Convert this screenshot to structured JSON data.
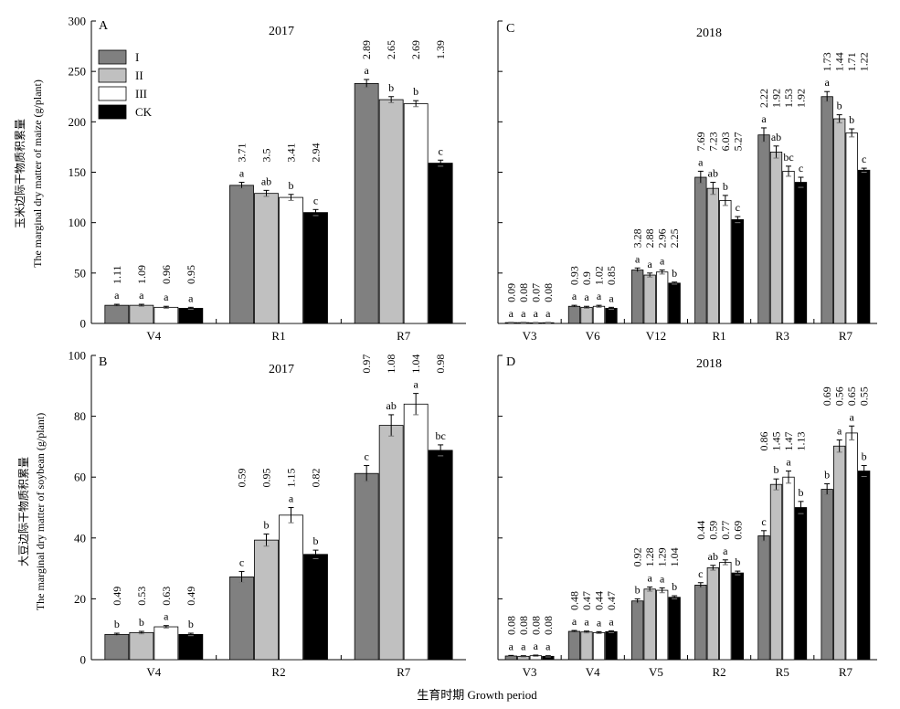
{
  "figure": {
    "xlabel": "生育时期 Growth period",
    "ylabel_top_cn": "玉米边际干物质积累量",
    "ylabel_top_en": "The marginal dry matter of maize (g/plant)",
    "ylabel_bottom_cn": "大豆边际干物质积累量",
    "ylabel_bottom_en": "The marginal dry matter of soybean (g/plant)"
  },
  "legend": {
    "entries": [
      "I",
      "II",
      "III",
      "CK"
    ]
  },
  "colors": {
    "I": "#808080",
    "II": "#c0c0c0",
    "III": "#ffffff",
    "CK": "#000000"
  },
  "chart_data": [
    {
      "panel": "A",
      "type": "bar",
      "title": "2017",
      "ylim": [
        0,
        300
      ],
      "yticks": [
        0,
        50,
        100,
        150,
        200,
        250,
        300
      ],
      "categories": [
        "V4",
        "R1",
        "R7"
      ],
      "series": [
        {
          "name": "I",
          "values": [
            18,
            137,
            238
          ],
          "errors": [
            1,
            3,
            4
          ],
          "letters": [
            "a",
            "a",
            "a"
          ],
          "ratios": [
            "1.11",
            "3.71",
            "2.89"
          ]
        },
        {
          "name": "II",
          "values": [
            18,
            129,
            222
          ],
          "errors": [
            1,
            3,
            3
          ],
          "letters": [
            "a",
            "ab",
            "b"
          ],
          "ratios": [
            "1.09",
            "3.5",
            "2.65"
          ]
        },
        {
          "name": "III",
          "values": [
            16,
            125,
            218
          ],
          "errors": [
            1,
            3,
            3
          ],
          "letters": [
            "a",
            "b",
            "b"
          ],
          "ratios": [
            "0.96",
            "3.41",
            "2.69"
          ]
        },
        {
          "name": "CK",
          "values": [
            15,
            110,
            159
          ],
          "errors": [
            1,
            3,
            3
          ],
          "letters": [
            "a",
            "c",
            "c"
          ],
          "ratios": [
            "0.95",
            "2.94",
            "1.39"
          ]
        }
      ]
    },
    {
      "panel": "C",
      "type": "bar",
      "title": "2018",
      "ylim": [
        0,
        300
      ],
      "categories": [
        "V3",
        "V6",
        "V12",
        "R1",
        "R3",
        "R7"
      ],
      "series": [
        {
          "name": "I",
          "values": [
            0.8,
            17,
            53,
            145,
            187,
            225
          ],
          "errors": [
            0.2,
            1,
            2,
            6,
            7,
            5
          ],
          "letters": [
            "a",
            "a",
            "a",
            "a",
            "a",
            "a"
          ],
          "ratios": [
            "0.09",
            "0.93",
            "3.28",
            "7.69",
            "2.22",
            "1.73"
          ]
        },
        {
          "name": "II",
          "values": [
            0.8,
            16,
            48,
            134,
            170,
            203
          ],
          "errors": [
            0.2,
            1,
            2,
            6,
            6,
            4
          ],
          "letters": [
            "a",
            "a",
            "a",
            "ab",
            "ab",
            "b"
          ],
          "ratios": [
            "0.08",
            "0.9",
            "2.88",
            "7.23",
            "1.92",
            "1.44"
          ]
        },
        {
          "name": "III",
          "values": [
            0.6,
            17,
            51,
            122,
            151,
            189
          ],
          "errors": [
            0.2,
            1,
            2,
            5,
            5,
            4
          ],
          "letters": [
            "a",
            "a",
            "a",
            "b",
            "bc",
            "b"
          ],
          "ratios": [
            "0.07",
            "1.02",
            "2.96",
            "6.03",
            "1.53",
            "1.71"
          ]
        },
        {
          "name": "CK",
          "values": [
            0.7,
            15,
            40,
            103,
            140,
            152
          ],
          "errors": [
            0.2,
            1,
            1,
            3,
            5,
            2
          ],
          "letters": [
            "a",
            "a",
            "b",
            "c",
            "c",
            "c"
          ],
          "ratios": [
            "0.08",
            "0.85",
            "2.25",
            "5.27",
            "1.92",
            "1.22"
          ]
        }
      ]
    },
    {
      "panel": "B",
      "type": "bar",
      "title": "2017",
      "ylim": [
        0,
        100
      ],
      "yticks": [
        0,
        20,
        40,
        60,
        80,
        100
      ],
      "categories": [
        "V4",
        "R2",
        "R7"
      ],
      "series": [
        {
          "name": "I",
          "values": [
            8.3,
            27.2,
            61.2
          ],
          "errors": [
            0.4,
            1.8,
            2.6
          ],
          "letters": [
            "b",
            "c",
            "c"
          ],
          "ratios": [
            "0.49",
            "0.59",
            "0.97"
          ]
        },
        {
          "name": "II",
          "values": [
            8.9,
            39.3,
            77.0
          ],
          "errors": [
            0.4,
            2.0,
            3.5
          ],
          "letters": [
            "b",
            "b",
            "ab"
          ],
          "ratios": [
            "0.53",
            "0.95",
            "1.08"
          ]
        },
        {
          "name": "III",
          "values": [
            10.8,
            47.5,
            84.0
          ],
          "errors": [
            0.4,
            2.5,
            3.5
          ],
          "letters": [
            "a",
            "a",
            "a"
          ],
          "ratios": [
            "0.63",
            "1.15",
            "1.04"
          ]
        },
        {
          "name": "CK",
          "values": [
            8.3,
            34.6,
            68.8
          ],
          "errors": [
            0.4,
            1.4,
            1.8
          ],
          "letters": [
            "b",
            "b",
            "bc"
          ],
          "ratios": [
            "0.49",
            "0.82",
            "0.98"
          ]
        }
      ]
    },
    {
      "panel": "D",
      "type": "bar",
      "title": "2018",
      "ylim": [
        0,
        100
      ],
      "categories": [
        "V3",
        "V4",
        "V5",
        "R2",
        "R5",
        "R7"
      ],
      "series": [
        {
          "name": "I",
          "values": [
            1.2,
            9.3,
            19.3,
            24.5,
            40.7,
            56.0
          ],
          "errors": [
            0.2,
            0.3,
            0.7,
            0.8,
            1.7,
            1.8
          ],
          "letters": [
            "a",
            "a",
            "b",
            "c",
            "c",
            "b"
          ],
          "ratios": [
            "0.08",
            "0.48",
            "0.92",
            "0.44",
            "0.86",
            "0.69"
          ]
        },
        {
          "name": "II",
          "values": [
            1.1,
            9.1,
            23.2,
            30.2,
            57.6,
            70.2
          ],
          "errors": [
            0.2,
            0.3,
            0.7,
            0.8,
            1.8,
            2.0
          ],
          "letters": [
            "a",
            "a",
            "a",
            "ab",
            "b",
            "a"
          ],
          "ratios": [
            "0.08",
            "0.47",
            "1.28",
            "0.59",
            "1.45",
            "0.56"
          ]
        },
        {
          "name": "III",
          "values": [
            1.3,
            8.9,
            22.8,
            32.0,
            60.0,
            74.5
          ],
          "errors": [
            0.2,
            0.3,
            0.8,
            0.8,
            2.0,
            2.3
          ],
          "letters": [
            "a",
            "a",
            "a",
            "a",
            "a",
            "a"
          ],
          "ratios": [
            "0.08",
            "0.44",
            "1.29",
            "0.77",
            "1.47",
            "0.65"
          ]
        },
        {
          "name": "CK",
          "values": [
            1.1,
            9.2,
            20.5,
            28.5,
            50.0,
            62.0
          ],
          "errors": [
            0.2,
            0.3,
            0.5,
            0.6,
            2.0,
            1.8
          ],
          "letters": [
            "a",
            "a",
            "b",
            "b",
            "b",
            "b"
          ],
          "ratios": [
            "0.08",
            "0.47",
            "1.04",
            "0.69",
            "1.13",
            "0.55"
          ]
        }
      ]
    }
  ]
}
